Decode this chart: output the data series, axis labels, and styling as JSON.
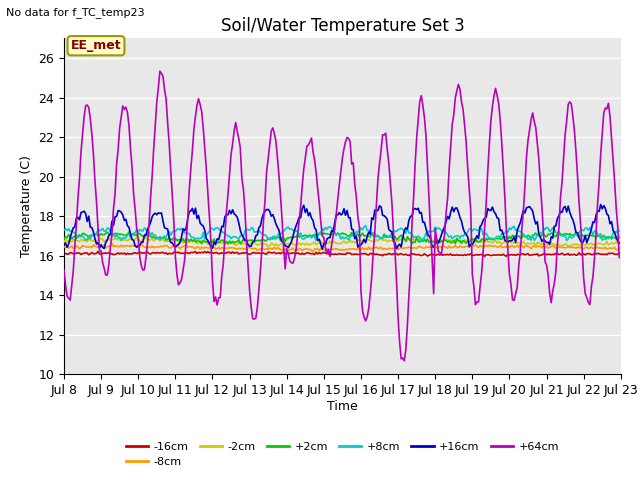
{
  "title": "Soil/Water Temperature Set 3",
  "ylabel": "Temperature (C)",
  "xlabel": "Time",
  "no_data_text": "No data for f_TC_temp23",
  "station_label": "EE_met",
  "ylim": [
    10,
    27
  ],
  "yticks": [
    10,
    12,
    14,
    16,
    18,
    20,
    22,
    24,
    26
  ],
  "series": [
    {
      "label": "-16cm",
      "color": "#cc0000",
      "lw": 1.2
    },
    {
      "label": "-8cm",
      "color": "#ff9900",
      "lw": 1.2
    },
    {
      "label": "-2cm",
      "color": "#cccc00",
      "lw": 1.2
    },
    {
      "label": "+2cm",
      "color": "#00cc00",
      "lw": 1.2
    },
    {
      "label": "+8cm",
      "color": "#00cccc",
      "lw": 1.2
    },
    {
      "label": "+16cm",
      "color": "#0000cc",
      "lw": 1.2
    },
    {
      "label": "+64cm",
      "color": "#bb00bb",
      "lw": 1.2
    }
  ],
  "bg_color": "#e8e8e8",
  "grid_color": "white",
  "title_fontsize": 12,
  "label_fontsize": 9,
  "tick_fontsize": 9,
  "xtick_labels": [
    "Jul 8",
    "Jul 9",
    "Jul 10",
    "Jul 11",
    "Jul 12",
    "Jul 13",
    "Jul 14",
    "Jul 15",
    "Jul 16",
    "Jul 17",
    "Jul 18",
    "Jul 19",
    "Jul 20",
    "Jul 21",
    "Jul 22",
    "Jul 23"
  ]
}
